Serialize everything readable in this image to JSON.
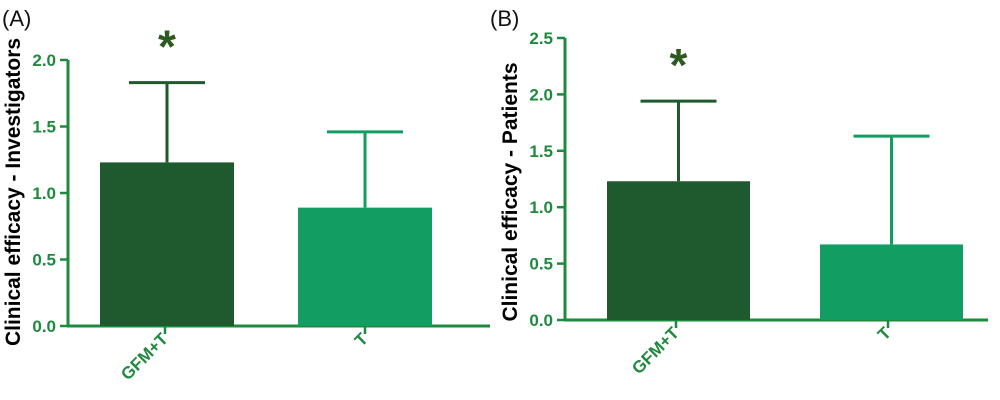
{
  "colors": {
    "axis": "#1e8a3e",
    "text": "#1e8a3e",
    "bar_dark": "#1e5a2e",
    "bar_light": "#129e62",
    "significance": "#2d5a1e"
  },
  "chart_data": [
    {
      "type": "bar",
      "panel_label": "(A)",
      "ylabel": "Clinical efficacy - Investigators",
      "xlabel": "",
      "categories": [
        "GFM+T",
        "T"
      ],
      "values": [
        1.23,
        0.89
      ],
      "error_upper": [
        1.83,
        1.46
      ],
      "ylim": [
        0,
        2.0
      ],
      "yticks": [
        "0.0",
        "0.5",
        "1.0",
        "1.5",
        "2.0"
      ],
      "significance": [
        "*",
        ""
      ],
      "grid": false,
      "legend": "none"
    },
    {
      "type": "bar",
      "panel_label": "(B)",
      "ylabel": "Clinical efficacy - Patients",
      "xlabel": "",
      "categories": [
        "GFM+T",
        "T"
      ],
      "values": [
        1.23,
        0.67
      ],
      "error_upper": [
        1.94,
        1.63
      ],
      "ylim": [
        0,
        2.5
      ],
      "yticks": [
        "0.0",
        "0.5",
        "1.0",
        "1.5",
        "2.0",
        "2.5"
      ],
      "significance": [
        "*",
        ""
      ],
      "grid": false,
      "legend": "none"
    }
  ]
}
